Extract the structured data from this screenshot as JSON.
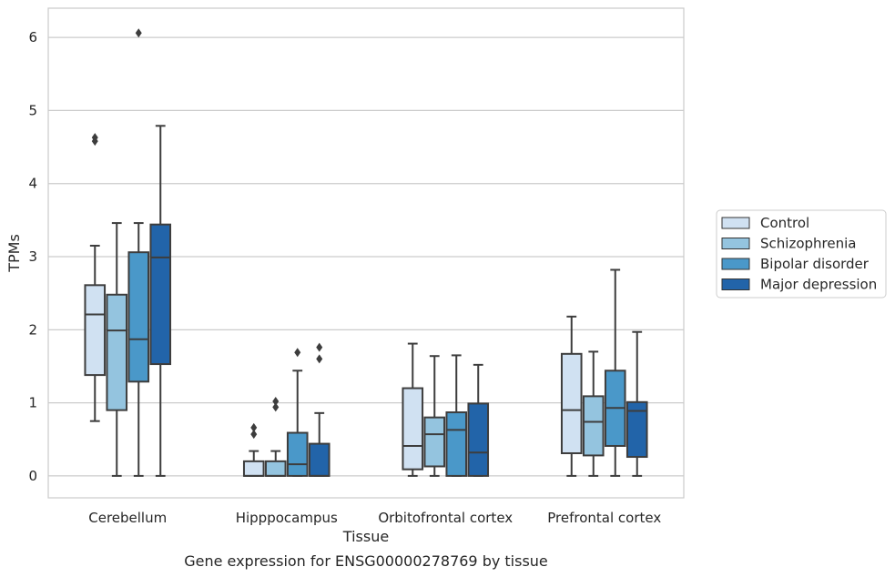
{
  "chart_data": {
    "type": "box",
    "title": "Gene expression for ENSG00000278769 by tissue",
    "xlabel": "Tissue",
    "ylabel": "TPMs",
    "ylim": [
      -0.3,
      6.4
    ],
    "yticks": [
      0,
      1,
      2,
      3,
      4,
      5,
      6
    ],
    "grid": true,
    "legend_position": "right",
    "categories": [
      "Cerebellum",
      "Hipppocampus",
      "Orbitofrontal cortex",
      "Prefrontal cortex"
    ],
    "series": [
      {
        "name": "Control",
        "color": "#d0e1f2",
        "boxes": [
          {
            "whislo": 0.75,
            "q1": 1.38,
            "med": 2.21,
            "q3": 2.61,
            "whishi": 3.15,
            "fliers": [
              4.58,
              4.63
            ]
          },
          {
            "whislo": 0.0,
            "q1": 0.0,
            "med": 0.0,
            "q3": 0.2,
            "whishi": 0.34,
            "fliers": [
              0.57,
              0.66
            ]
          },
          {
            "whislo": 0.0,
            "q1": 0.09,
            "med": 0.41,
            "q3": 1.2,
            "whishi": 1.81,
            "fliers": []
          },
          {
            "whislo": 0.0,
            "q1": 0.31,
            "med": 0.9,
            "q3": 1.67,
            "whishi": 2.18,
            "fliers": []
          }
        ]
      },
      {
        "name": "Schizophrenia",
        "color": "#94c4df",
        "boxes": [
          {
            "whislo": 0.0,
            "q1": 0.9,
            "med": 1.99,
            "q3": 2.48,
            "whishi": 3.46,
            "fliers": []
          },
          {
            "whislo": 0.0,
            "q1": 0.0,
            "med": 0.0,
            "q3": 0.2,
            "whishi": 0.34,
            "fliers": [
              0.94,
              1.02
            ]
          },
          {
            "whislo": 0.0,
            "q1": 0.13,
            "med": 0.57,
            "q3": 0.8,
            "whishi": 1.64,
            "fliers": []
          },
          {
            "whislo": 0.0,
            "q1": 0.28,
            "med": 0.74,
            "q3": 1.09,
            "whishi": 1.7,
            "fliers": []
          }
        ]
      },
      {
        "name": "Bipolar disorder",
        "color": "#4a98c9",
        "boxes": [
          {
            "whislo": 0.0,
            "q1": 1.29,
            "med": 1.87,
            "q3": 3.06,
            "whishi": 3.46,
            "fliers": [
              6.06
            ]
          },
          {
            "whislo": 0.0,
            "q1": 0.0,
            "med": 0.16,
            "q3": 0.59,
            "whishi": 1.44,
            "fliers": [
              1.69
            ]
          },
          {
            "whislo": 0.0,
            "q1": 0.0,
            "med": 0.63,
            "q3": 0.87,
            "whishi": 1.65,
            "fliers": []
          },
          {
            "whislo": 0.0,
            "q1": 0.41,
            "med": 0.93,
            "q3": 1.44,
            "whishi": 2.82,
            "fliers": []
          }
        ]
      },
      {
        "name": "Major depression",
        "color": "#2264a9",
        "boxes": [
          {
            "whislo": 0.0,
            "q1": 1.53,
            "med": 2.99,
            "q3": 3.44,
            "whishi": 4.79,
            "fliers": []
          },
          {
            "whislo": 0.0,
            "q1": 0.0,
            "med": 0.0,
            "q3": 0.44,
            "whishi": 0.86,
            "fliers": [
              1.6,
              1.76
            ]
          },
          {
            "whislo": 0.0,
            "q1": 0.0,
            "med": 0.32,
            "q3": 0.99,
            "whishi": 1.52,
            "fliers": []
          },
          {
            "whislo": 0.0,
            "q1": 0.26,
            "med": 0.89,
            "q3": 1.01,
            "whishi": 1.97,
            "fliers": []
          }
        ]
      }
    ]
  }
}
